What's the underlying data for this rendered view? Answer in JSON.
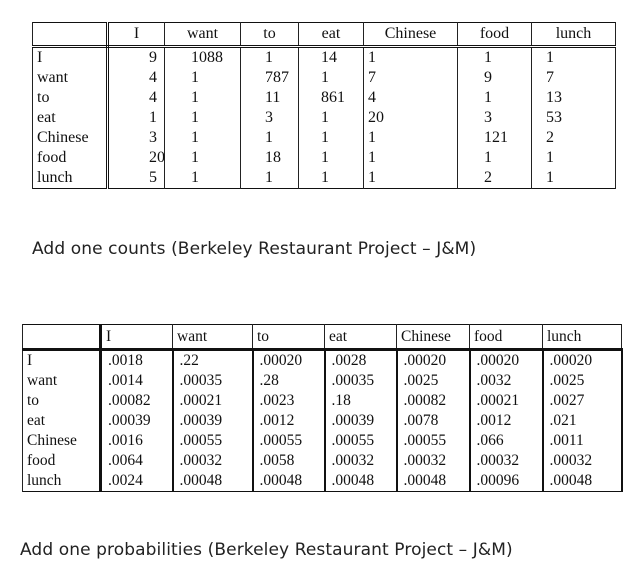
{
  "counts_table": {
    "headers": [
      "",
      "I",
      "want",
      "to",
      "eat",
      "Chinese",
      "food",
      "lunch"
    ],
    "rows": [
      [
        "I",
        "9",
        "1088",
        "1",
        "14",
        "1",
        "1",
        "1"
      ],
      [
        "want",
        "4",
        "1",
        "787",
        "1",
        "7",
        "9",
        "7"
      ],
      [
        "to",
        "4",
        "1",
        "11",
        "861",
        "4",
        "1",
        "13"
      ],
      [
        "eat",
        "1",
        "1",
        "3",
        "1",
        "20",
        "3",
        "53"
      ],
      [
        "Chinese",
        "3",
        "1",
        "1",
        "1",
        "1",
        "121",
        "2"
      ],
      [
        "food",
        "20",
        "1",
        "18",
        "1",
        "1",
        "1",
        "1"
      ],
      [
        "lunch",
        "5",
        "1",
        "1",
        "1",
        "1",
        "2",
        "1"
      ]
    ],
    "caption": "Add one counts (Berkeley Restaurant Project – J&M)"
  },
  "probabilities_table": {
    "headers": [
      "",
      "I",
      "want",
      "to",
      "eat",
      "Chinese",
      "food",
      "lunch"
    ],
    "rows": [
      [
        "I",
        ".0018",
        ".22",
        ".00020",
        ".0028",
        ".00020",
        ".00020",
        ".00020"
      ],
      [
        "want",
        ".0014",
        ".00035",
        ".28",
        ".00035",
        ".0025",
        ".0032",
        ".0025"
      ],
      [
        "to",
        ".00082",
        ".00021",
        ".0023",
        ".18",
        ".00082",
        ".00021",
        ".0027"
      ],
      [
        "eat",
        ".00039",
        ".00039",
        ".0012",
        ".00039",
        ".0078",
        ".0012",
        ".021"
      ],
      [
        "Chinese",
        ".0016",
        ".00055",
        ".00055",
        ".00055",
        ".00055",
        ".066",
        ".0011"
      ],
      [
        "food",
        ".0064",
        ".00032",
        ".0058",
        ".00032",
        ".00032",
        ".00032",
        ".00032"
      ],
      [
        "lunch",
        ".0024",
        ".00048",
        ".00048",
        ".00048",
        ".00048",
        ".00096",
        ".00048"
      ]
    ],
    "caption": "Add one probabilities (Berkeley Restaurant Project – J&M)"
  }
}
